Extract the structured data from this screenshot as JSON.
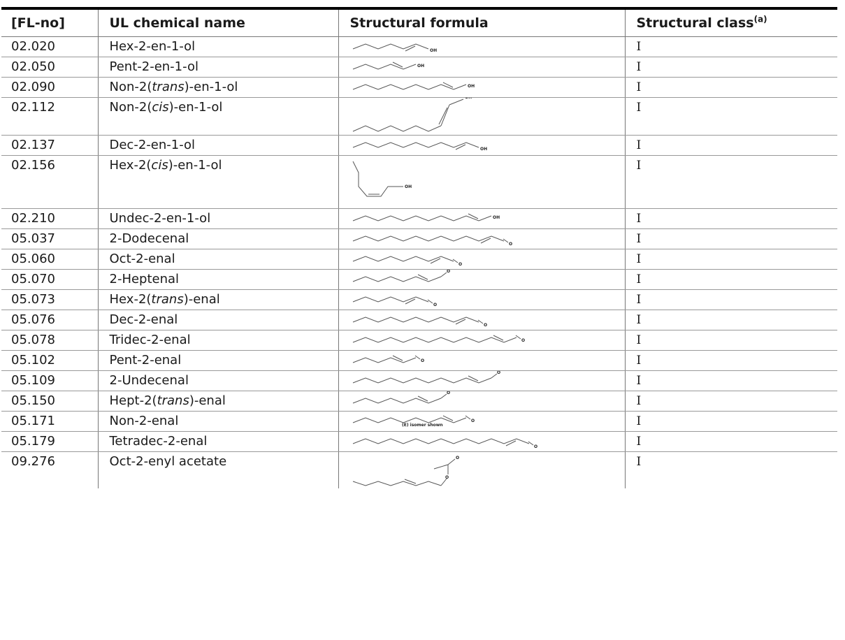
{
  "headers": {
    "fl_no": "[FL-no]",
    "name": "UL chemical name",
    "formula": "Structural formula",
    "cls": "Structural class",
    "cls_sup": "(a)"
  },
  "rows": [
    {
      "fl": "02.020",
      "name_parts": [
        "Hex-2-en-1-ol"
      ],
      "cls": "I",
      "formula_icon": "hex-2-en-1-ol-structure"
    },
    {
      "fl": "02.050",
      "name_parts": [
        "Pent-2-en-1-ol"
      ],
      "cls": "I",
      "formula_icon": "pent-2-en-1-ol-structure"
    },
    {
      "fl": "02.090",
      "name_parts": [
        "Non-2(",
        "trans",
        ")-en-1-ol"
      ],
      "cls": "I",
      "formula_icon": "non-2-trans-en-1-ol-structure"
    },
    {
      "fl": "02.112",
      "name_parts": [
        "Non-2(",
        "cis",
        ")-en-1-ol"
      ],
      "cls": "I",
      "formula_icon": "non-2-cis-en-1-ol-structure"
    },
    {
      "fl": "02.137",
      "name_parts": [
        "Dec-2-en-1-ol"
      ],
      "cls": "I",
      "formula_icon": "dec-2-en-1-ol-structure"
    },
    {
      "fl": "02.156",
      "name_parts": [
        "Hex-2(",
        "cis",
        ")-en-1-ol"
      ],
      "cls": "I",
      "formula_icon": "hex-2-cis-en-1-ol-structure"
    },
    {
      "fl": "02.210",
      "name_parts": [
        "Undec-2-en-1-ol"
      ],
      "cls": "I",
      "formula_icon": "undec-2-en-1-ol-structure"
    },
    {
      "fl": "05.037",
      "name_parts": [
        "2-Dodecenal"
      ],
      "cls": "I",
      "formula_icon": "2-dodecenal-structure"
    },
    {
      "fl": "05.060",
      "name_parts": [
        "Oct-2-enal"
      ],
      "cls": "I",
      "formula_icon": "oct-2-enal-structure"
    },
    {
      "fl": "05.070",
      "name_parts": [
        "2-Heptenal"
      ],
      "cls": "I",
      "formula_icon": "2-heptenal-structure"
    },
    {
      "fl": "05.073",
      "name_parts": [
        "Hex-2(",
        "trans",
        ")-enal"
      ],
      "cls": "I",
      "formula_icon": "hex-2-trans-enal-structure"
    },
    {
      "fl": "05.076",
      "name_parts": [
        "Dec-2-enal"
      ],
      "cls": "I",
      "formula_icon": "dec-2-enal-structure"
    },
    {
      "fl": "05.078",
      "name_parts": [
        "Tridec-2-enal"
      ],
      "cls": "I",
      "formula_icon": "tridec-2-enal-structure"
    },
    {
      "fl": "05.102",
      "name_parts": [
        "Pent-2-enal"
      ],
      "cls": "I",
      "formula_icon": "pent-2-enal-structure"
    },
    {
      "fl": "05.109",
      "name_parts": [
        "2-Undecenal"
      ],
      "cls": "I",
      "formula_icon": "2-undecenal-structure"
    },
    {
      "fl": "05.150",
      "name_parts": [
        "Hept-2(",
        "trans",
        ")-enal"
      ],
      "cls": "I",
      "formula_icon": "hept-2-trans-enal-structure"
    },
    {
      "fl": "05.171",
      "name_parts": [
        "Non-2-enal"
      ],
      "cls": "I",
      "formula_icon": "non-2-enal-structure"
    },
    {
      "fl": "05.179",
      "name_parts": [
        "Tetradec-2-enal"
      ],
      "cls": "I",
      "formula_icon": "tetradec-2-enal-structure"
    },
    {
      "fl": "09.276",
      "name_parts": [
        "Oct-2-enyl acetate"
      ],
      "cls": "I",
      "formula_icon": "oct-2-enyl-acetate-structure"
    }
  ],
  "formula_labels": {
    "oh": "OH",
    "o": "O",
    "isomer_note": "(E) isomer shown"
  }
}
